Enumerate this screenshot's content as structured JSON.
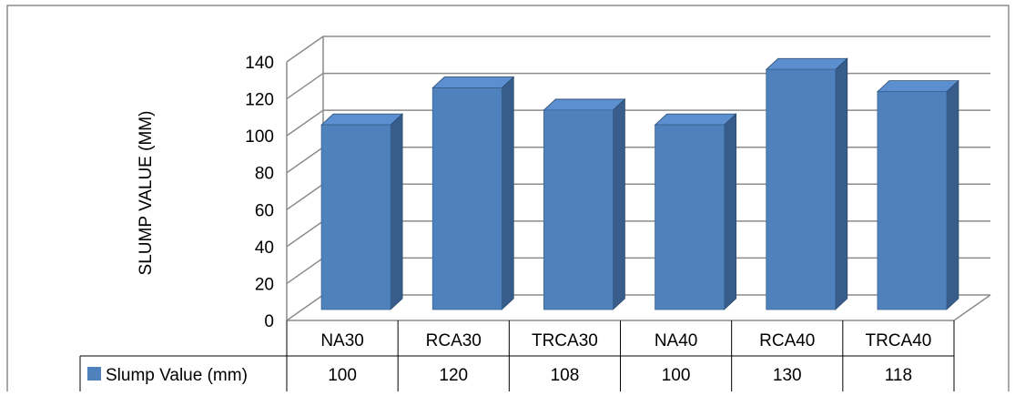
{
  "chart_data": {
    "type": "bar",
    "style": "3d-column",
    "ylabel": "SLUMP VALUE (MM)",
    "ylim": [
      0,
      140
    ],
    "yticks": [
      0,
      20,
      40,
      60,
      80,
      100,
      120,
      140
    ],
    "grid": true,
    "categories": [
      "NA30",
      "RCA30",
      "TRCA30",
      "NA40",
      "RCA40",
      "TRCA40"
    ],
    "series": [
      {
        "name": "Slump Value (mm)",
        "values": [
          100,
          120,
          108,
          100,
          130,
          118
        ]
      }
    ],
    "data_table": true,
    "colors": {
      "bar_front": "#4F81BD",
      "bar_side": "#385D8A",
      "bar_top": "#5B8FD0",
      "grid": "#8C8C8C",
      "border": "#8C8C8C"
    }
  }
}
